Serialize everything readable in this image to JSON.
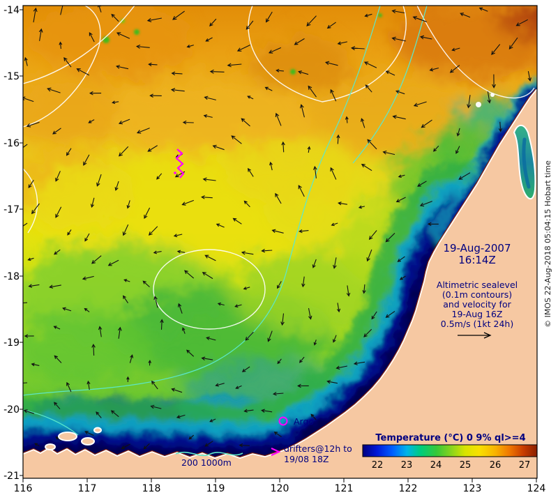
{
  "figure": {
    "timestamp": {
      "date": "19-Aug-2007",
      "time": "16:14Z"
    },
    "annotation": {
      "lines": [
        "Altimetric sealevel",
        "(0.1m contours)",
        "and velocity for",
        "19-Aug 16Z",
        "0.5m/s (1kt 24h)"
      ]
    },
    "legend": {
      "argo": "Argo",
      "drifters_line1": "drifters@12h to",
      "drifters_line2": "19/08 18Z",
      "bathymetry": "200  1000m"
    },
    "colorbar": {
      "title": "Temperature (°C) 0 9% ql>=4",
      "ticks": [
        "22",
        "23",
        "24",
        "25",
        "26",
        "27"
      ],
      "range": [
        22,
        27
      ]
    },
    "axes": {
      "x_ticks": [
        "116",
        "117",
        "118",
        "119",
        "120",
        "121",
        "122",
        "123",
        "124"
      ],
      "y_ticks": [
        "-14",
        "-15",
        "-16",
        "-17",
        "-18",
        "-19",
        "-20",
        "-21"
      ],
      "x_range": [
        116,
        124
      ],
      "y_range": [
        -21,
        -14
      ]
    },
    "credit": "© IMOS 22-Aug-2018 05:04:15 Hobart time",
    "colors": {
      "land": "#f6c8a2",
      "annotation_text": "#000080",
      "argo_marker": "#ff00ff",
      "drifter_marker": "#ff00ff",
      "bathymetry_contour": "#5ce8cc",
      "sealevel_contour": "#ffffff",
      "velocity_arrow": "#000000",
      "deep_water": "#000080"
    }
  }
}
